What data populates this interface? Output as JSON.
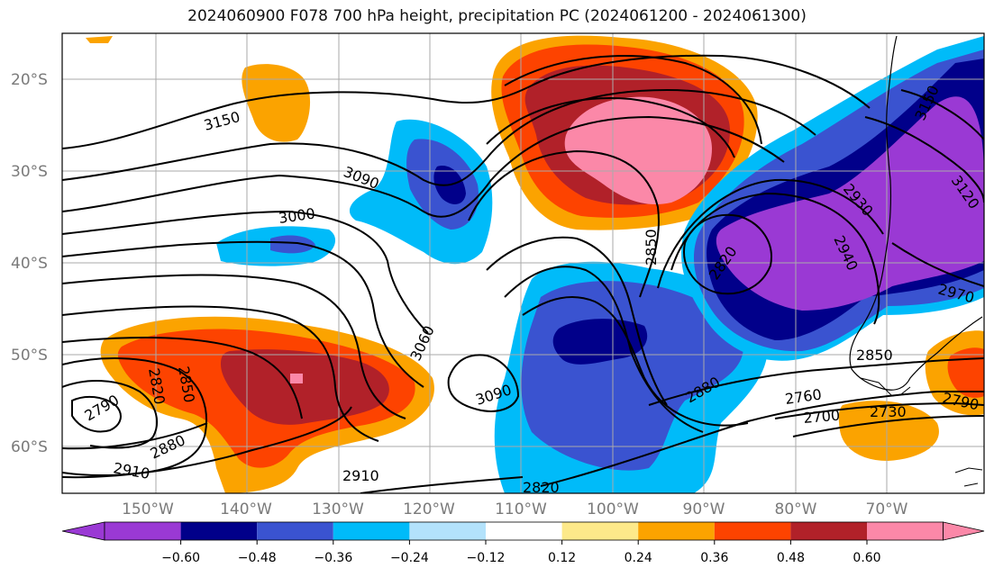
{
  "title": "2024060900 F078 700 hPa height, precipitation PC (2024061200 - 2024061300)",
  "colors": {
    "c_n1": "#9a39d4",
    "c_n2": "#01008a",
    "c_n3": "#3a53d0",
    "c_n4": "#00bbf9",
    "c_n5": "#b3e2fb",
    "c_0": "#ffffff",
    "c_p1": "#fde98a",
    "c_p2": "#fba300",
    "c_p3": "#fd4300",
    "c_p4": "#b12129",
    "c_p5": "#fb88a8",
    "contour": "#000000",
    "coast": "#000000",
    "grid": "#aaaaaa"
  },
  "lat_labels": [
    "20°S",
    "30°S",
    "40°S",
    "50°S",
    "60°S"
  ],
  "lon_labels": [
    "150°W",
    "140°W",
    "130°W",
    "120°W",
    "110°W",
    "100°W",
    "90°W",
    "80°W",
    "70°W"
  ],
  "contour_labels": [
    "3150",
    "3090",
    "3000",
    "3060",
    "3090",
    "2850",
    "2820",
    "2790",
    "2820",
    "2850",
    "2880",
    "2910",
    "2910",
    "2820",
    "2880",
    "2760",
    "2700",
    "2730",
    "2790",
    "2970",
    "2940",
    "2930",
    "3120",
    "3150",
    "2850"
  ],
  "colorbar": {
    "ticks": [
      "−0.60",
      "−0.48",
      "−0.36",
      "−0.24",
      "−0.12",
      "0.12",
      "0.24",
      "0.36",
      "0.48",
      "0.60"
    ]
  }
}
